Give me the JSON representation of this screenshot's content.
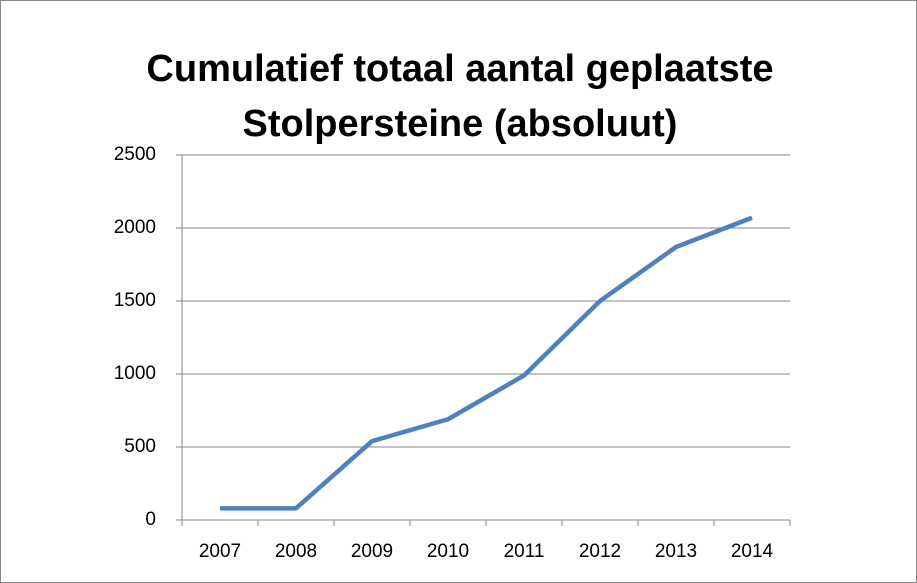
{
  "chart_data": {
    "type": "line",
    "title": "Cumulatief totaal aantal geplaatste Stolpersteine (absoluut)",
    "categories": [
      "2007",
      "2008",
      "2009",
      "2010",
      "2011",
      "2012",
      "2013",
      "2014"
    ],
    "values": [
      80,
      80,
      540,
      690,
      990,
      1500,
      1870,
      2070
    ],
    "color": "#4f81bd",
    "ylim": [
      0,
      2500
    ],
    "yticks": [
      0,
      500,
      1000,
      1500,
      2000,
      2500
    ],
    "grid": true
  }
}
